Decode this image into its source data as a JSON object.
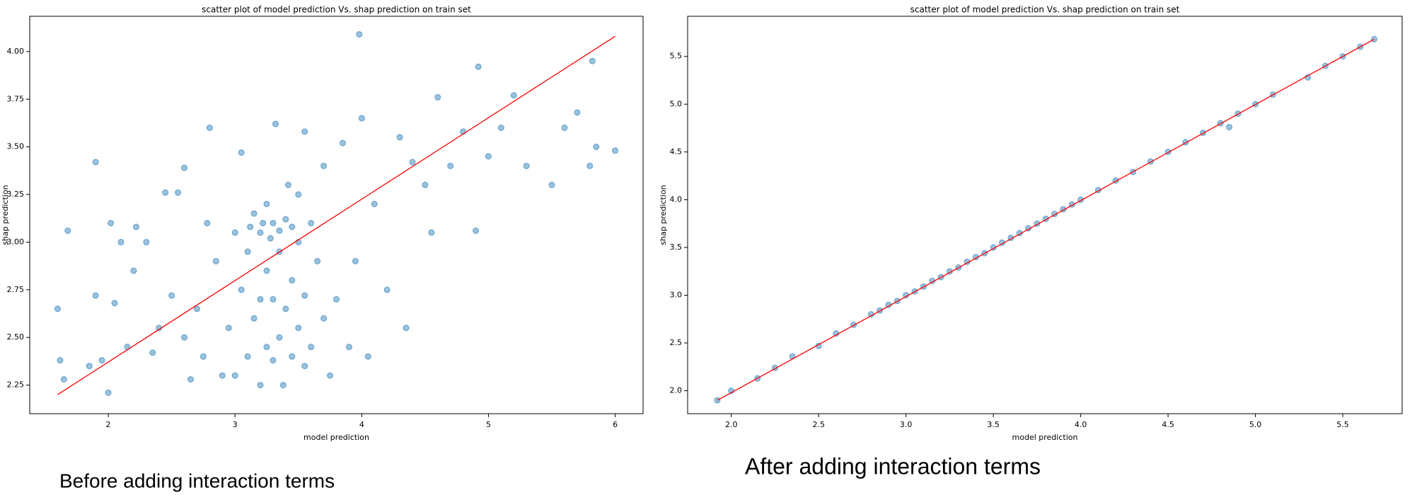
{
  "chart_data": [
    {
      "type": "scatter",
      "title": "scatter plot of model prediction Vs. shap prediction on train set",
      "x_label": "model prediction",
      "y_label": "shap prediction",
      "caption": "Before adding interaction terms",
      "xlim": [
        1.38,
        6.22
      ],
      "ylim": [
        2.1,
        4.185
      ],
      "xticks": [
        2,
        3,
        4,
        5,
        6
      ],
      "yticks": [
        2.25,
        {
          "value": 2.5,
          "label": "2.50"
        },
        2.75,
        {
          "value": 3,
          "label": "3.00"
        },
        3.25,
        {
          "value": 3.5,
          "label": "3.50"
        },
        3.75,
        {
          "value": 4,
          "label": "4.00"
        }
      ],
      "series": [
        {
          "color": "#1f77b4",
          "x": [
            1.6,
            1.62,
            1.65,
            1.68,
            1.85,
            1.9,
            1.9,
            1.95,
            2.0,
            2.02,
            2.05,
            2.1,
            2.15,
            2.2,
            2.22,
            2.3,
            2.35,
            2.4,
            2.45,
            2.5,
            2.55,
            2.6,
            2.6,
            2.65,
            2.7,
            2.75,
            2.78,
            2.8,
            2.85,
            2.9,
            2.95,
            3.0,
            3.0,
            3.05,
            3.05,
            3.1,
            3.1,
            3.12,
            3.15,
            3.15,
            3.2,
            3.2,
            3.2,
            3.22,
            3.25,
            3.25,
            3.25,
            3.28,
            3.3,
            3.3,
            3.3,
            3.32,
            3.35,
            3.35,
            3.35,
            3.38,
            3.4,
            3.4,
            3.42,
            3.45,
            3.45,
            3.45,
            3.5,
            3.5,
            3.5,
            3.55,
            3.55,
            3.55,
            3.6,
            3.6,
            3.65,
            3.7,
            3.7,
            3.75,
            3.8,
            3.85,
            3.9,
            3.95,
            3.98,
            4.0,
            4.05,
            4.1,
            4.2,
            4.3,
            4.35,
            4.4,
            4.5,
            4.55,
            4.6,
            4.7,
            4.8,
            4.9,
            4.92,
            5.0,
            5.1,
            5.2,
            5.3,
            5.5,
            5.6,
            5.7,
            5.8,
            5.82,
            5.85,
            6.0
          ],
          "values": [
            2.65,
            2.38,
            2.28,
            3.06,
            2.35,
            3.42,
            2.72,
            2.38,
            2.21,
            3.1,
            2.68,
            3.0,
            2.45,
            2.85,
            3.08,
            3.0,
            2.42,
            2.55,
            3.26,
            2.72,
            3.26,
            3.39,
            2.5,
            2.28,
            2.65,
            2.4,
            3.1,
            3.6,
            2.9,
            2.3,
            2.55,
            2.3,
            3.05,
            2.75,
            3.47,
            2.4,
            2.95,
            3.08,
            2.6,
            3.15,
            2.25,
            2.7,
            3.05,
            3.1,
            2.45,
            2.85,
            3.2,
            3.02,
            2.38,
            2.7,
            3.1,
            3.62,
            2.5,
            2.95,
            3.06,
            2.25,
            2.65,
            3.12,
            3.3,
            2.4,
            2.8,
            3.08,
            2.55,
            3.0,
            3.25,
            2.35,
            2.72,
            3.58,
            2.45,
            3.1,
            2.9,
            2.6,
            3.4,
            2.3,
            2.7,
            3.52,
            2.45,
            2.9,
            4.09,
            3.65,
            2.4,
            3.2,
            2.75,
            3.55,
            2.55,
            3.42,
            3.3,
            3.05,
            3.76,
            3.4,
            3.58,
            3.06,
            3.92,
            3.45,
            3.6,
            3.77,
            3.4,
            3.3,
            3.6,
            3.68,
            3.4,
            3.95,
            3.5,
            3.48
          ]
        }
      ],
      "fit_line": {
        "color": "#ff0000",
        "x": [
          1.6,
          6.0
        ],
        "values": [
          2.2,
          4.08
        ]
      }
    },
    {
      "type": "scatter",
      "title": "scatter plot of model prediction Vs. shap prediction on train set",
      "x_label": "model prediction",
      "y_label": "shap prediction",
      "caption": "After adding interaction terms",
      "xlim": [
        1.75,
        5.84
      ],
      "ylim": [
        1.76,
        5.92
      ],
      "xticks": [
        {
          "value": 2,
          "label": "2.0"
        },
        2.5,
        {
          "value": 3,
          "label": "3.0"
        },
        3.5,
        {
          "value": 4,
          "label": "4.0"
        },
        4.5,
        {
          "value": 5,
          "label": "5.0"
        },
        5.5
      ],
      "yticks": [
        {
          "value": 2,
          "label": "2.0"
        },
        2.5,
        {
          "value": 3,
          "label": "3.0"
        },
        3.5,
        {
          "value": 4,
          "label": "4.0"
        },
        4.5,
        {
          "value": 5,
          "label": "5.0"
        },
        5.5
      ],
      "series": [
        {
          "color": "#1f77b4",
          "x": [
            1.92,
            2.0,
            2.15,
            2.25,
            2.35,
            2.5,
            2.6,
            2.7,
            2.8,
            2.85,
            2.9,
            2.95,
            3.0,
            3.05,
            3.1,
            3.15,
            3.2,
            3.25,
            3.3,
            3.35,
            3.4,
            3.45,
            3.5,
            3.55,
            3.6,
            3.65,
            3.7,
            3.75,
            3.8,
            3.85,
            3.9,
            3.95,
            4.0,
            4.1,
            4.2,
            4.3,
            4.4,
            4.5,
            4.6,
            4.7,
            4.8,
            4.85,
            4.9,
            5.0,
            5.1,
            5.3,
            5.4,
            5.5,
            5.6,
            5.68
          ],
          "values": [
            1.9,
            2.0,
            2.13,
            2.24,
            2.36,
            2.47,
            2.6,
            2.69,
            2.8,
            2.84,
            2.9,
            2.94,
            3.0,
            3.04,
            3.09,
            3.15,
            3.19,
            3.25,
            3.29,
            3.35,
            3.4,
            3.44,
            3.5,
            3.55,
            3.6,
            3.65,
            3.7,
            3.75,
            3.8,
            3.85,
            3.9,
            3.95,
            4.0,
            4.1,
            4.2,
            4.29,
            4.4,
            4.5,
            4.6,
            4.7,
            4.8,
            4.76,
            4.9,
            5.0,
            5.1,
            5.28,
            5.4,
            5.5,
            5.6,
            5.68
          ]
        }
      ],
      "fit_line": {
        "color": "#ff0000",
        "x": [
          1.92,
          5.68
        ],
        "values": [
          1.9,
          5.68
        ]
      }
    }
  ]
}
